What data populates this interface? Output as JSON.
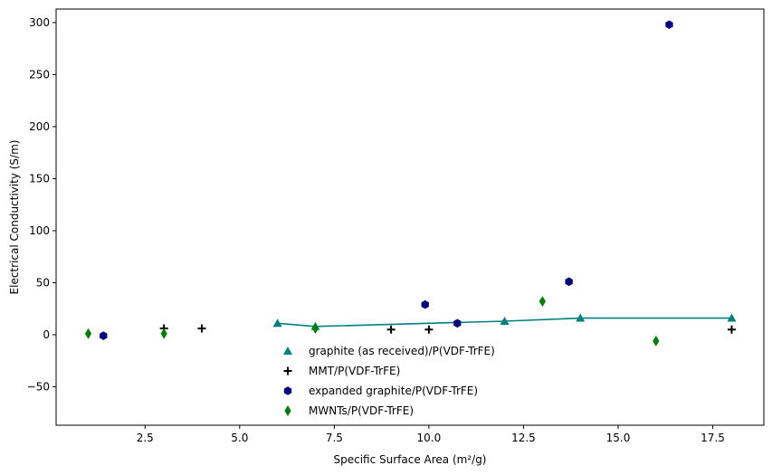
{
  "chart_data": {
    "type": "scatter",
    "title": "",
    "xlabel": "Specific Surface Area (m²/g)",
    "ylabel": "Electrical Conductivity (S/m)",
    "xlim": [
      0.15,
      18.85
    ],
    "ylim": [
      -87,
      313
    ],
    "x_ticks": [
      2.5,
      5.0,
      7.5,
      10.0,
      12.5,
      15.0,
      17.5
    ],
    "x_tick_labels": [
      "2.5",
      "5.0",
      "7.5",
      "10.0",
      "12.5",
      "15.0",
      "17.5"
    ],
    "y_ticks": [
      -50,
      0,
      50,
      100,
      150,
      200,
      250,
      300
    ],
    "y_tick_labels": [
      "−50",
      "0",
      "50",
      "100",
      "150",
      "200",
      "250",
      "300"
    ],
    "grid": false,
    "legend_position": "bottom-center",
    "series": [
      {
        "name": "graphite (as received)/P(VDF-TrFE)",
        "marker": "triangle",
        "color": "#008080",
        "line": true,
        "x": [
          6,
          7,
          12,
          14,
          18
        ],
        "y": [
          11,
          8,
          13,
          16,
          16
        ]
      },
      {
        "name": "MMT/P(VDF-TrFE)",
        "marker": "plus",
        "color": "#000000",
        "line": false,
        "x": [
          3,
          4,
          9,
          10,
          18
        ],
        "y": [
          6,
          6,
          5,
          5,
          5
        ]
      },
      {
        "name": "expanded graphite/P(VDF-TrFE)",
        "marker": "hexagon",
        "color": "#000080",
        "line": false,
        "x": [
          1.4,
          9.9,
          10.75,
          13.7,
          16.35
        ],
        "y": [
          -1,
          29,
          11,
          51,
          298
        ]
      },
      {
        "name": "MWNTs/P(VDF-TrFE)",
        "marker": "diamond",
        "color": "#008000",
        "line": false,
        "x": [
          1,
          3,
          7,
          13,
          16
        ],
        "y": [
          1,
          1,
          6,
          32,
          -6
        ]
      }
    ]
  }
}
